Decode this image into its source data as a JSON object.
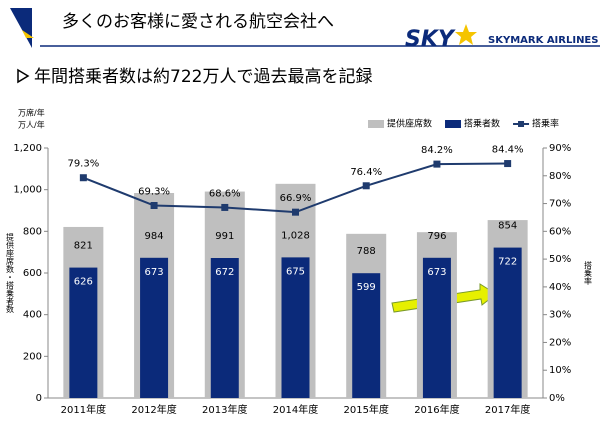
{
  "header": {
    "title": "多くのお客様に愛される航空会社へ",
    "logo": "SKY",
    "logo_sub": "SKYMARK AIRLINES",
    "subtitle": "年間搭乗者数は約722万人で過去最高を記録"
  },
  "chart_data": {
    "type": "bar",
    "y_unit_labels": [
      "万席/年",
      "万人/年"
    ],
    "ylabel": "提供座席数・搭乗者数",
    "y2label": "搭乗率",
    "categories": [
      "2011年度",
      "2012年度",
      "2013年度",
      "2014年度",
      "2015年度",
      "2016年度",
      "2017年度"
    ],
    "series": [
      {
        "name": "提供座席数",
        "type": "bar",
        "color": "#bfbfbf",
        "values": [
          821,
          984,
          991,
          1028,
          788,
          796,
          854
        ],
        "value_labels": [
          "821",
          "984",
          "991",
          "1,028",
          "788",
          "796",
          "854"
        ]
      },
      {
        "name": "搭乗者数",
        "type": "bar",
        "color": "#0b2a7a",
        "values": [
          626,
          673,
          672,
          675,
          599,
          673,
          722
        ]
      },
      {
        "name": "搭乗率",
        "type": "line",
        "axis": "y2",
        "color": "#1f3b6e",
        "values": [
          79.3,
          69.3,
          68.6,
          66.9,
          76.4,
          84.2,
          84.4
        ],
        "value_labels": [
          "79.3%",
          "69.3%",
          "68.6%",
          "66.9%",
          "76.4%",
          "84.2%",
          "84.4%"
        ]
      }
    ],
    "ylim": [
      0,
      1200
    ],
    "yticks": [
      0,
      200,
      400,
      600,
      800,
      {
        "value": 1000,
        "label": "1,000"
      },
      {
        "value": 1200,
        "label": "1,200"
      }
    ],
    "y2lim": [
      0,
      90
    ],
    "y2ticks": [
      {
        "value": 0,
        "label": "0%"
      },
      {
        "value": 10,
        "label": "10%"
      },
      {
        "value": 20,
        "label": "20%"
      },
      {
        "value": 30,
        "label": "30%"
      },
      {
        "value": 40,
        "label": "40%"
      },
      {
        "value": 50,
        "label": "50%"
      },
      {
        "value": 60,
        "label": "60%"
      },
      {
        "value": 70,
        "label": "70%"
      },
      {
        "value": 80,
        "label": "80%"
      },
      {
        "value": 90,
        "label": "90%"
      }
    ],
    "legend": "top-right"
  }
}
